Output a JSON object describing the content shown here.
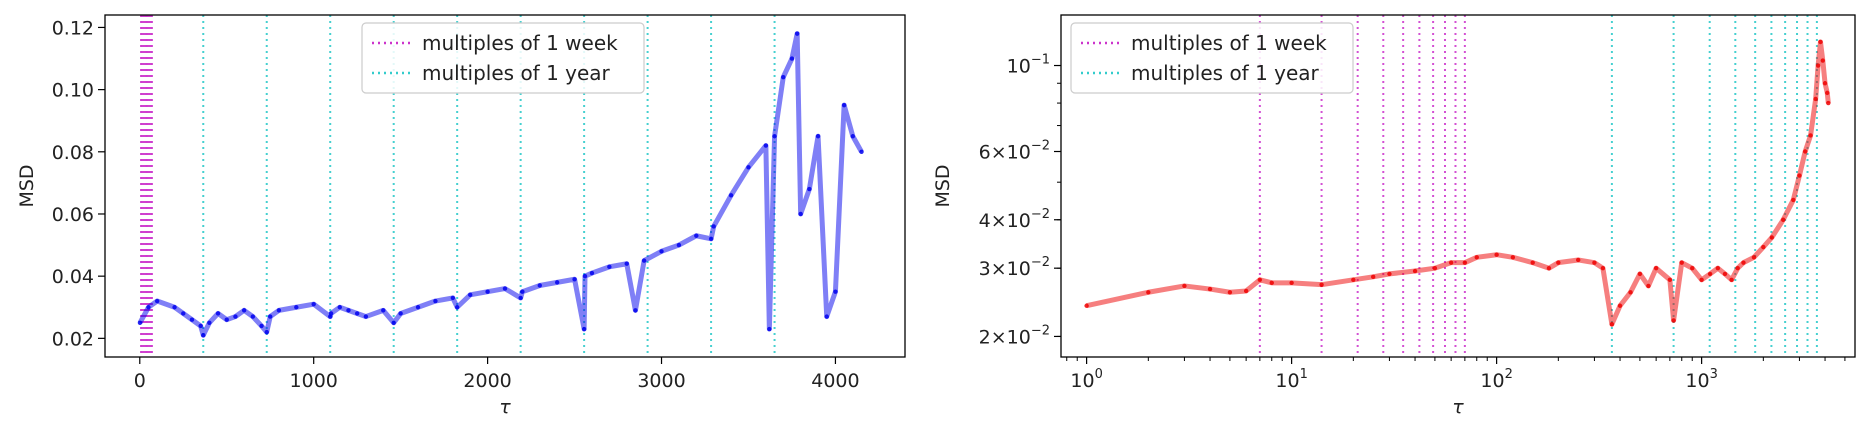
{
  "chart_data": [
    {
      "type": "line",
      "xscale": "linear",
      "yscale": "linear",
      "xlim": [
        -200,
        4400
      ],
      "ylim": [
        0.014,
        0.124
      ],
      "xticks": [
        0,
        1000,
        2000,
        3000,
        4000
      ],
      "xtick_labels": [
        "0",
        "1000",
        "2000",
        "3000",
        "4000"
      ],
      "yticks": [
        0.02,
        0.04,
        0.06,
        0.08,
        0.1,
        0.12
      ],
      "ytick_labels": [
        "0.02",
        "0.04",
        "0.06",
        "0.08",
        "0.10",
        "0.12"
      ],
      "xlabel": "τ",
      "ylabel": "MSD",
      "grid": false,
      "legend_position": "top-center",
      "legend": [
        {
          "label": "multiples of 1 week",
          "color": "#cc33cc",
          "style": "dotted"
        },
        {
          "label": "multiples of 1 year",
          "color": "#33cccc",
          "style": "dotted"
        }
      ],
      "week_lines": [
        7,
        14,
        21,
        28,
        35,
        42,
        49,
        56,
        63,
        70
      ],
      "year_lines": [
        365,
        730,
        1095,
        1460,
        1825,
        2190,
        2555,
        2920,
        3285,
        3650
      ],
      "series": [
        {
          "color": "#0000ee",
          "x": [
            1,
            50,
            100,
            200,
            250,
            300,
            350,
            365,
            400,
            450,
            500,
            550,
            600,
            650,
            700,
            730,
            750,
            800,
            900,
            1000,
            1095,
            1100,
            1150,
            1200,
            1250,
            1300,
            1400,
            1460,
            1500,
            1600,
            1700,
            1800,
            1825,
            1900,
            2000,
            2100,
            2190,
            2200,
            2300,
            2400,
            2500,
            2555,
            2560,
            2600,
            2700,
            2800,
            2850,
            2900,
            3000,
            3100,
            3200,
            3285,
            3300,
            3400,
            3500,
            3600,
            3620,
            3650,
            3700,
            3750,
            3780,
            3800,
            3850,
            3900,
            3950,
            4000,
            4050,
            4100,
            4150
          ],
          "y": [
            0.025,
            0.03,
            0.032,
            0.03,
            0.028,
            0.026,
            0.024,
            0.021,
            0.025,
            0.028,
            0.026,
            0.027,
            0.029,
            0.027,
            0.024,
            0.022,
            0.027,
            0.029,
            0.03,
            0.031,
            0.027,
            0.028,
            0.03,
            0.029,
            0.028,
            0.027,
            0.029,
            0.025,
            0.028,
            0.03,
            0.032,
            0.033,
            0.03,
            0.034,
            0.035,
            0.036,
            0.033,
            0.035,
            0.037,
            0.038,
            0.039,
            0.023,
            0.04,
            0.041,
            0.043,
            0.044,
            0.029,
            0.045,
            0.048,
            0.05,
            0.053,
            0.052,
            0.056,
            0.066,
            0.075,
            0.082,
            0.023,
            0.085,
            0.104,
            0.11,
            0.118,
            0.06,
            0.068,
            0.085,
            0.027,
            0.035,
            0.095,
            0.085,
            0.08
          ]
        }
      ]
    },
    {
      "type": "line",
      "xscale": "log",
      "yscale": "log",
      "xlim": [
        0.75,
        5600
      ],
      "ylim": [
        0.0177,
        0.135
      ],
      "xticks": [
        1,
        10,
        100,
        1000
      ],
      "xtick_labels": [
        {
          "base": "10",
          "exp": "0"
        },
        {
          "base": "10",
          "exp": "1"
        },
        {
          "base": "10",
          "exp": "2"
        },
        {
          "base": "10",
          "exp": "3"
        }
      ],
      "yticks": [
        0.02,
        0.03,
        0.04,
        0.06,
        0.1
      ],
      "ytick_labels": [
        {
          "coef": "2×",
          "base": "10",
          "exp": "−2"
        },
        {
          "coef": "3×",
          "base": "10",
          "exp": "−2"
        },
        {
          "coef": "4×",
          "base": "10",
          "exp": "−2"
        },
        {
          "coef": "6×",
          "base": "10",
          "exp": "−2"
        },
        {
          "coef": "",
          "base": "10",
          "exp": "−1"
        }
      ],
      "xlabel": "τ",
      "ylabel": "MSD",
      "grid": false,
      "legend_position": "top-left",
      "legend": [
        {
          "label": "multiples of 1 week",
          "color": "#cc33cc",
          "style": "dotted"
        },
        {
          "label": "multiples of 1 year",
          "color": "#33cccc",
          "style": "dotted"
        }
      ],
      "week_lines": [
        7,
        14,
        21,
        28,
        35,
        42,
        49,
        56,
        63,
        70
      ],
      "year_lines": [
        365,
        730,
        1095,
        1460,
        1825,
        2190,
        2555,
        2920,
        3285,
        3650
      ],
      "series": [
        {
          "color": "#ee0000",
          "x": [
            1,
            2,
            3,
            4,
            5,
            6,
            7,
            8,
            10,
            14,
            20,
            25,
            30,
            40,
            50,
            60,
            70,
            80,
            100,
            120,
            150,
            180,
            200,
            250,
            300,
            330,
            365,
            400,
            450,
            500,
            550,
            600,
            700,
            730,
            800,
            900,
            1000,
            1100,
            1200,
            1300,
            1400,
            1500,
            1600,
            1800,
            2000,
            2200,
            2500,
            2800,
            3000,
            3200,
            3400,
            3600,
            3700,
            3800,
            3900,
            4000,
            4100,
            4150
          ],
          "y": [
            0.024,
            0.026,
            0.027,
            0.0265,
            0.026,
            0.0262,
            0.028,
            0.0275,
            0.0275,
            0.0272,
            0.028,
            0.0285,
            0.029,
            0.0295,
            0.03,
            0.031,
            0.031,
            0.032,
            0.0325,
            0.032,
            0.031,
            0.03,
            0.031,
            0.0315,
            0.031,
            0.03,
            0.0215,
            0.024,
            0.026,
            0.029,
            0.027,
            0.03,
            0.028,
            0.022,
            0.031,
            0.03,
            0.028,
            0.029,
            0.03,
            0.029,
            0.028,
            0.03,
            0.031,
            0.032,
            0.034,
            0.036,
            0.04,
            0.045,
            0.052,
            0.06,
            0.066,
            0.082,
            0.1,
            0.115,
            0.103,
            0.09,
            0.085,
            0.08
          ]
        }
      ]
    }
  ]
}
